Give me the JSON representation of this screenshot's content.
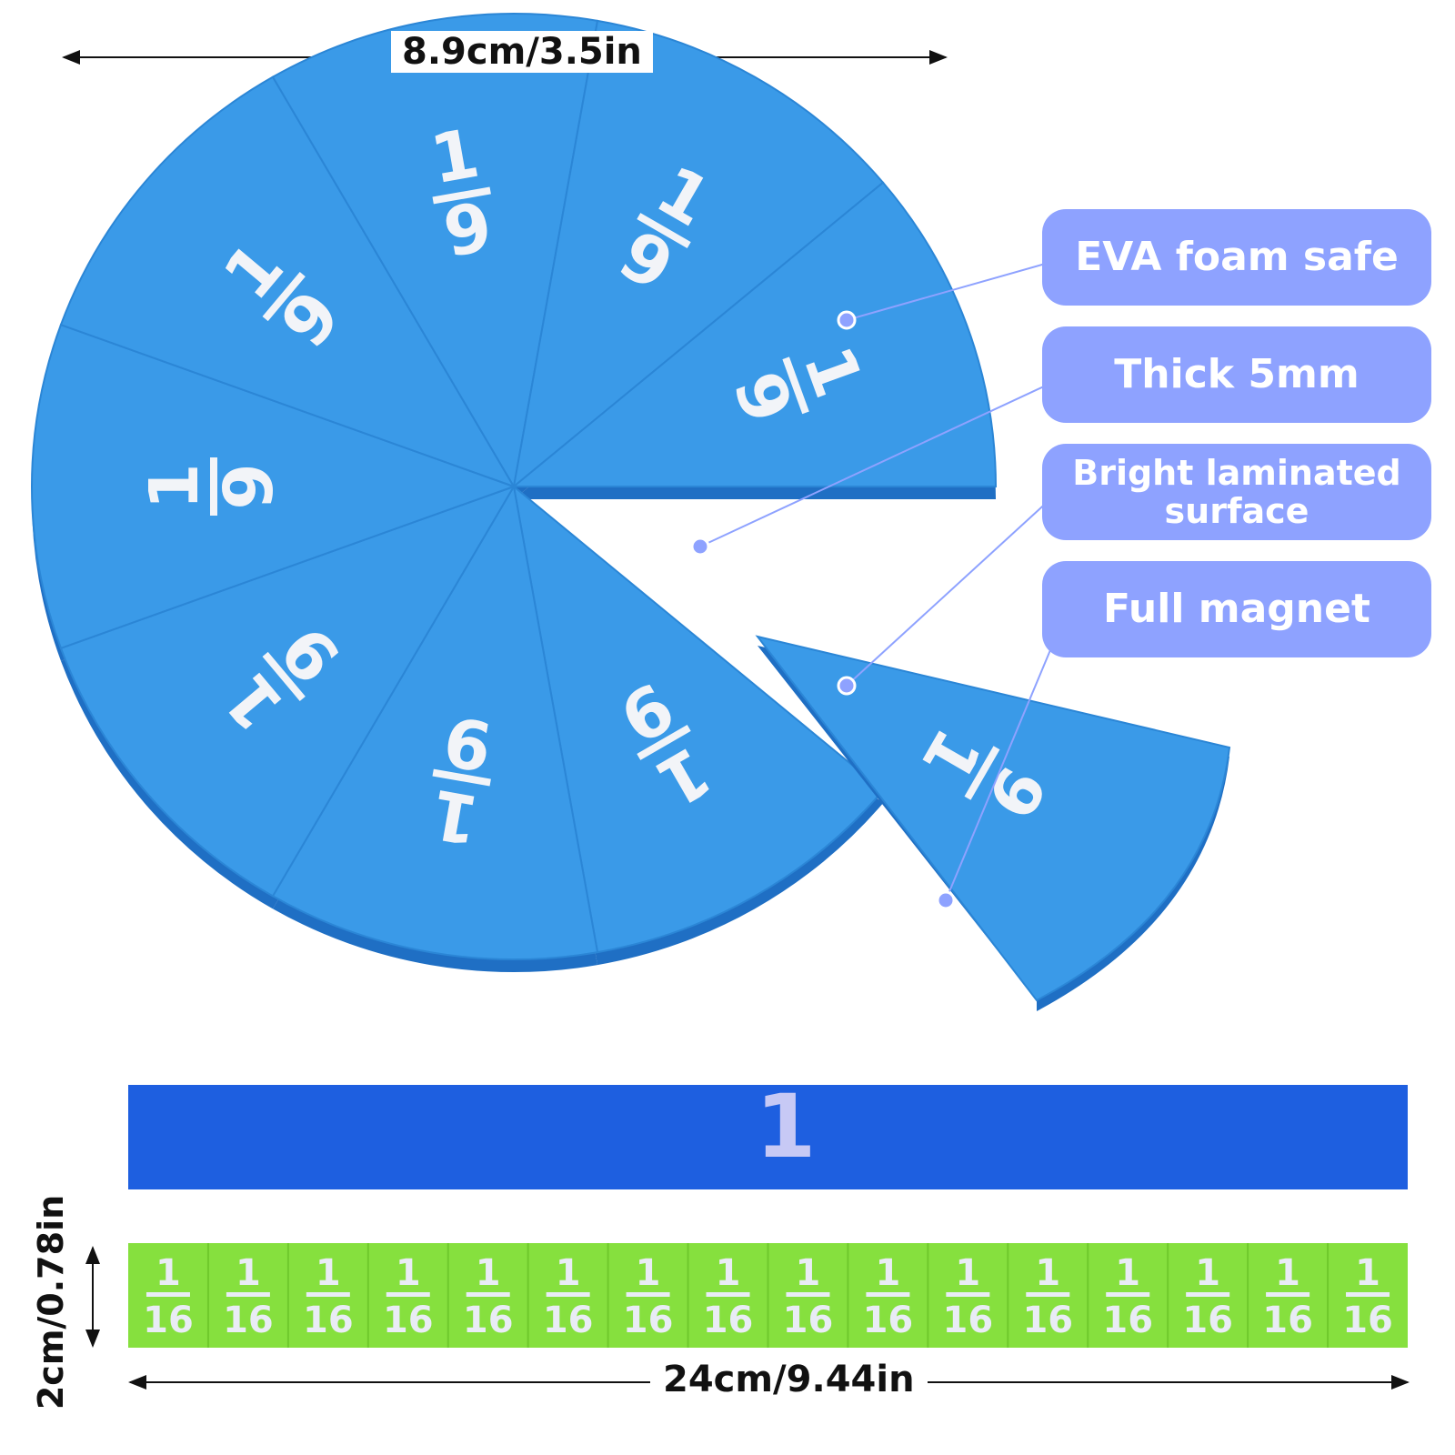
{
  "dimensions": {
    "pie_diameter": "8.9cm/3.5in",
    "strip_length": "24cm/9.44in",
    "strip_height": "2cm/0.78in"
  },
  "callouts": [
    "EVA foam safe",
    "Thick 5mm",
    "Bright laminated surface",
    "Full magnet"
  ],
  "pie": {
    "numerator": "1",
    "denominator": "9",
    "color": "#3a9ae8",
    "edge_color": "#1f6fc4"
  },
  "whole_bar": {
    "label": "1",
    "color": "#1e5fe0"
  },
  "sixteenths_bar": {
    "numerator": "1",
    "denominator": "16",
    "color": "#86e03e",
    "pieces": [
      "1/16",
      "1/16",
      "1/16",
      "1/16",
      "1/16",
      "1/16",
      "1/16",
      "1/16",
      "1/16",
      "1/16",
      "1/16",
      "1/16",
      "1/16",
      "1/16",
      "1/16",
      "1/16"
    ]
  },
  "colors": {
    "callout_bg": "#8ea2ff",
    "callout_text": "#ffffff",
    "pointer": "#8ea2ff"
  }
}
